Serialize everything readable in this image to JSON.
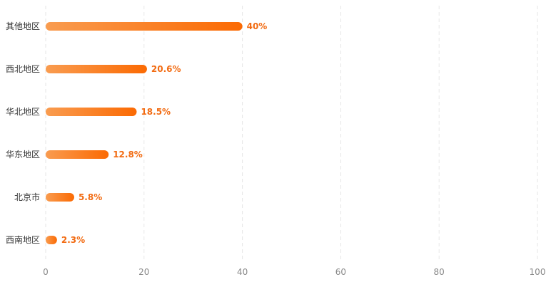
{
  "chart_data": {
    "type": "bar",
    "orientation": "horizontal",
    "categories": [
      "其他地区",
      "西北地区",
      "华北地区",
      "华东地区",
      "北京市",
      "西南地区"
    ],
    "values": [
      40,
      20.6,
      18.5,
      12.8,
      5.8,
      2.3
    ],
    "data_labels": [
      "40%",
      "20.6%",
      "18.5%",
      "12.8%",
      "5.8%",
      "2.3%"
    ],
    "x_ticks": [
      0,
      20,
      40,
      60,
      80,
      100
    ],
    "xlim": [
      0,
      100
    ],
    "grid": true,
    "legend": "none",
    "colors": {
      "bar_start": "#f99c50",
      "bar_end": "#fb6a03",
      "label": "#f26b12",
      "grid": "#e6e6e6",
      "tick": "#888888",
      "category": "#333333"
    }
  }
}
